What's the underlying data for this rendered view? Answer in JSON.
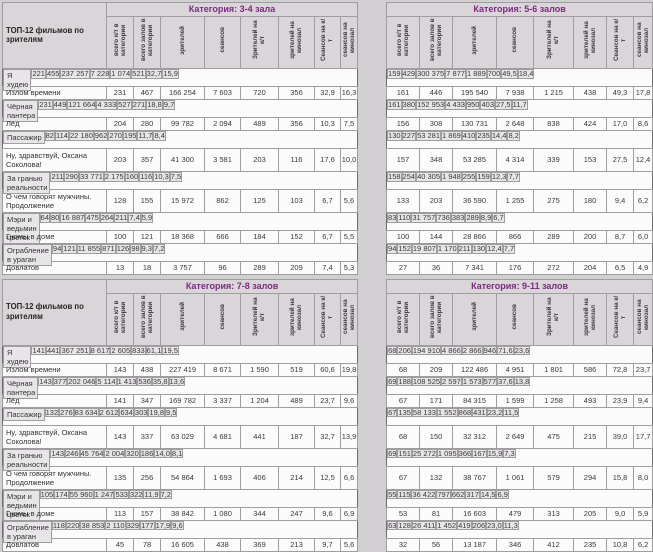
{
  "header": {
    "row_title": "ТОП-12 фильмов по зрителям"
  },
  "columns": [
    "всего к/т в категории",
    "всего залов в категории",
    "зрителей",
    "сеансов",
    "Зрителей на к/т",
    "зрителей на кинозал",
    "Сеансов на к/т",
    "сеансов на кинозал"
  ],
  "films": [
    "Я худею",
    "Излом времени",
    "Чёрная пантера",
    "Лёд",
    "Пассажир",
    "Ну, здравствуй, Оксана Соколова!",
    "За гранью реальности",
    "О чем говорят мужчины. Продолжение",
    "Мэри и ведьмин цветок",
    "Гномы в доме",
    "Ограбление в ураган",
    "Довлатов"
  ],
  "tables": [
    {
      "title": "Категория: 3-4 зала",
      "rows": [
        [
          "221",
          "455",
          "237 257",
          "7 228",
          "1 074",
          "521",
          "32,7",
          "15,9"
        ],
        [
          "231",
          "467",
          "166 254",
          "7 603",
          "720",
          "356",
          "32,9",
          "16,3"
        ],
        [
          "231",
          "449",
          "121 664",
          "4 333",
          "527",
          "271",
          "18,8",
          "9,7"
        ],
        [
          "204",
          "280",
          "99 782",
          "2 094",
          "489",
          "356",
          "10,3",
          "7,5"
        ],
        [
          "82",
          "114",
          "22 180",
          "962",
          "270",
          "195",
          "11,7",
          "8,4"
        ],
        [
          "203",
          "357",
          "41 300",
          "3 581",
          "203",
          "116",
          "17,6",
          "10,0"
        ],
        [
          "211",
          "290",
          "33 771",
          "2 175",
          "160",
          "116",
          "10,3",
          "7,5"
        ],
        [
          "128",
          "155",
          "15 972",
          "862",
          "125",
          "103",
          "6,7",
          "5,6"
        ],
        [
          "64",
          "80",
          "16 887",
          "475",
          "264",
          "211",
          "7,4",
          "5,9"
        ],
        [
          "100",
          "121",
          "18 368",
          "666",
          "184",
          "152",
          "6,7",
          "5,5"
        ],
        [
          "94",
          "121",
          "11 855",
          "871",
          "126",
          "98",
          "9,3",
          "7,2"
        ],
        [
          "13",
          "18",
          "3 757",
          "96",
          "289",
          "209",
          "7,4",
          "5,3"
        ]
      ]
    },
    {
      "title": "Категория: 5-6 залов",
      "rows": [
        [
          "159",
          "429",
          "300 375",
          "7 877",
          "1 889",
          "700",
          "49,5",
          "18,4"
        ],
        [
          "161",
          "446",
          "195 540",
          "7 938",
          "1 215",
          "438",
          "49,3",
          "17,8"
        ],
        [
          "161",
          "380",
          "152 953",
          "4 433",
          "950",
          "403",
          "27,5",
          "11,7"
        ],
        [
          "156",
          "308",
          "130 731",
          "2 648",
          "838",
          "424",
          "17,0",
          "8,6"
        ],
        [
          "130",
          "227",
          "53 281",
          "1 869",
          "410",
          "235",
          "14,4",
          "8,2"
        ],
        [
          "157",
          "348",
          "53 285",
          "4 314",
          "339",
          "153",
          "27,5",
          "12,4"
        ],
        [
          "158",
          "254",
          "40 305",
          "1 948",
          "255",
          "159",
          "12,3",
          "7,7"
        ],
        [
          "133",
          "203",
          "36 590",
          "1 255",
          "275",
          "180",
          "9,4",
          "6,2"
        ],
        [
          "83",
          "110",
          "31 757",
          "736",
          "383",
          "289",
          "8,9",
          "6,7"
        ],
        [
          "100",
          "144",
          "28 866",
          "866",
          "289",
          "200",
          "8,7",
          "6,0"
        ],
        [
          "94",
          "152",
          "19 807",
          "1 170",
          "211",
          "130",
          "12,4",
          "7,7"
        ],
        [
          "27",
          "36",
          "7 341",
          "176",
          "272",
          "204",
          "6,5",
          "4,9"
        ]
      ]
    },
    {
      "title": "Категория: 7-8 залов",
      "rows": [
        [
          "141",
          "441",
          "367 251",
          "8 617",
          "2 605",
          "833",
          "61,1",
          "19,5"
        ],
        [
          "143",
          "438",
          "227 419",
          "8 671",
          "1 590",
          "519",
          "60,6",
          "19,8"
        ],
        [
          "143",
          "377",
          "202 046",
          "5 114",
          "1 413",
          "536",
          "35,8",
          "13,6"
        ],
        [
          "141",
          "347",
          "169 782",
          "3 337",
          "1 204",
          "489",
          "23,7",
          "9,6"
        ],
        [
          "132",
          "276",
          "83 634",
          "2 612",
          "634",
          "303",
          "19,8",
          "9,5"
        ],
        [
          "143",
          "337",
          "63 029",
          "4 681",
          "441",
          "187",
          "32,7",
          "13,9"
        ],
        [
          "143",
          "246",
          "45 764",
          "2 004",
          "320",
          "186",
          "14,0",
          "8,1"
        ],
        [
          "135",
          "256",
          "54 864",
          "1 693",
          "406",
          "214",
          "12,5",
          "6,6"
        ],
        [
          "105",
          "174",
          "55 960",
          "1 247",
          "533",
          "322",
          "11,9",
          "7,2"
        ],
        [
          "113",
          "157",
          "38 842",
          "1 080",
          "344",
          "247",
          "9,6",
          "6,9"
        ],
        [
          "118",
          "220",
          "38 853",
          "2 110",
          "329",
          "177",
          "17,9",
          "9,6"
        ],
        [
          "45",
          "78",
          "16 605",
          "438",
          "369",
          "213",
          "9,7",
          "5,6"
        ]
      ]
    },
    {
      "title": "Категория: 9-11 залов",
      "rows": [
        [
          "68",
          "206",
          "194 910",
          "4 866",
          "2 866",
          "946",
          "71,6",
          "23,6"
        ],
        [
          "68",
          "209",
          "122 486",
          "4 951",
          "1 801",
          "586",
          "72,8",
          "23,7"
        ],
        [
          "69",
          "188",
          "108 525",
          "2 597",
          "1 573",
          "577",
          "37,6",
          "13,8"
        ],
        [
          "67",
          "171",
          "84 315",
          "1 599",
          "1 258",
          "493",
          "23,9",
          "9,4"
        ],
        [
          "67",
          "135",
          "58 133",
          "1 552",
          "868",
          "431",
          "23,2",
          "11,5"
        ],
        [
          "68",
          "150",
          "32 312",
          "2 649",
          "475",
          "215",
          "39,0",
          "17,7"
        ],
        [
          "69",
          "151",
          "25 272",
          "1 095",
          "366",
          "167",
          "15,9",
          "7,3"
        ],
        [
          "67",
          "132",
          "38 767",
          "1 061",
          "579",
          "294",
          "15,8",
          "8,0"
        ],
        [
          "55",
          "115",
          "36 422",
          "797",
          "662",
          "317",
          "14,5",
          "6,9"
        ],
        [
          "53",
          "81",
          "16 603",
          "479",
          "313",
          "205",
          "9,0",
          "5,9"
        ],
        [
          "63",
          "128",
          "26 411",
          "1 452",
          "419",
          "206",
          "23,0",
          "11,3"
        ],
        [
          "32",
          "56",
          "13 187",
          "346",
          "412",
          "235",
          "10,8",
          "6,2"
        ]
      ]
    }
  ],
  "colors": {
    "accent_purple": "#7c2a80",
    "header_bg": "#d9d5d9",
    "band_row_bg": "#e8e5e8",
    "page_bg": "#d2cfd2"
  }
}
